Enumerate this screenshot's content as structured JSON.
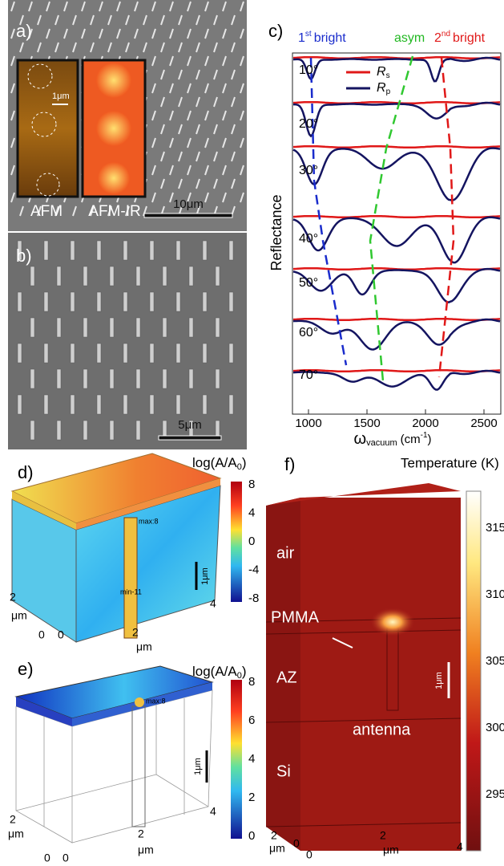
{
  "panels": {
    "a": {
      "label": "a)",
      "insets": [
        "AFM",
        "AFM-IR"
      ],
      "inset_scale": "1μm",
      "scale_bar": "10μm"
    },
    "b": {
      "label": "b)",
      "scale_bar": "5μm"
    },
    "c": {
      "label": "c)",
      "annotations": [
        [
          "1",
          "st",
          "bright"
        ],
        [
          "asym"
        ],
        [
          "2",
          "nd",
          "bright"
        ]
      ],
      "legend": [
        [
          "R",
          "s"
        ],
        [
          "R",
          "p"
        ]
      ],
      "y_label": "Reflectance",
      "x_label": [
        "ω",
        "vacuum",
        "(cm",
        "-1",
        ")"
      ],
      "angles": [
        "10°",
        "20°",
        "30°",
        "40°",
        "50°",
        "60°",
        "70°"
      ],
      "xticks": [
        1000,
        1500,
        2000,
        2500
      ]
    },
    "d": {
      "label": "d)",
      "colorbar_title": [
        "log(A/A",
        "0",
        ")"
      ],
      "colorbar_ticks": [
        8,
        4,
        0,
        -4,
        -8
      ],
      "markers": [
        "max:8",
        "min-11"
      ],
      "scale": "1μm",
      "axis_texts": [
        "2",
        "μm",
        "0",
        "0",
        "2",
        "μm",
        "4"
      ]
    },
    "e": {
      "label": "e)",
      "colorbar_title": [
        "log(A/A",
        "0",
        ")"
      ],
      "colorbar_ticks": [
        8,
        6,
        4,
        2,
        0
      ],
      "markers": [
        "max:8"
      ],
      "scale": "1μm",
      "axis_texts": [
        "2",
        "μm",
        "0",
        "0",
        "2",
        "μm",
        "4"
      ]
    },
    "f": {
      "label": "f)",
      "colorbar_title": "Temperature (K)",
      "colorbar_ticks": [
        315,
        310,
        305,
        300,
        295
      ],
      "layers": [
        "air",
        "PMMA",
        "AZ",
        "antenna",
        "Si"
      ],
      "scale": "1μm",
      "axis_texts": [
        "2",
        "μm",
        "0",
        "0",
        "2",
        "μm",
        "4"
      ]
    }
  }
}
